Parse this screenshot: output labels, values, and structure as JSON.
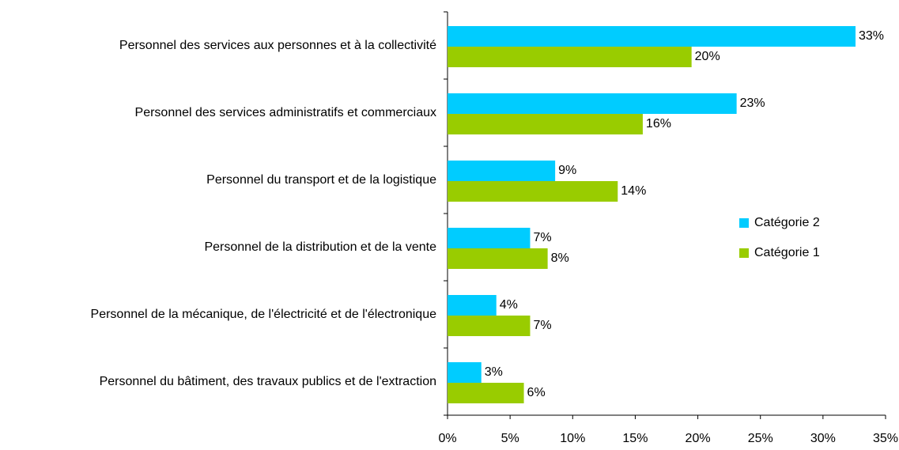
{
  "chart_data": {
    "type": "hbar",
    "categories": [
      "Personnel des services aux personnes et à la collectivité",
      "Personnel des services administratifs et commerciaux",
      "Personnel du transport et de la logistique",
      "Personnel de la distribution et de la vente",
      "Personnel de la mécanique, de l'électricité et de l'électronique",
      "Personnel du bâtiment, des travaux publics et de l'extraction"
    ],
    "series": [
      {
        "name": "Catégorie 2",
        "color": "#00ccff",
        "values": [
          32.6,
          23.1,
          8.6,
          6.6,
          3.9,
          2.7
        ],
        "value_labels": [
          "33%",
          "23%",
          "9%",
          "7%",
          "4%",
          "3%"
        ]
      },
      {
        "name": "Catégorie 1",
        "color": "#99cc00",
        "values": [
          19.5,
          15.6,
          13.6,
          8.0,
          6.6,
          6.1
        ],
        "value_labels": [
          "20%",
          "16%",
          "14%",
          "8%",
          "7%",
          "6%"
        ]
      }
    ],
    "xlim": [
      0,
      35
    ],
    "xticks": [
      {
        "value": 0,
        "label": "0%"
      },
      {
        "value": 5,
        "label": "5%"
      },
      {
        "value": 10,
        "label": "10%"
      },
      {
        "value": 15,
        "label": "15%"
      },
      {
        "value": 20,
        "label": "20%"
      },
      {
        "value": 25,
        "label": "25%"
      },
      {
        "value": 30,
        "label": "30%"
      },
      {
        "value": 35,
        "label": "35%"
      }
    ],
    "legend": "right"
  }
}
